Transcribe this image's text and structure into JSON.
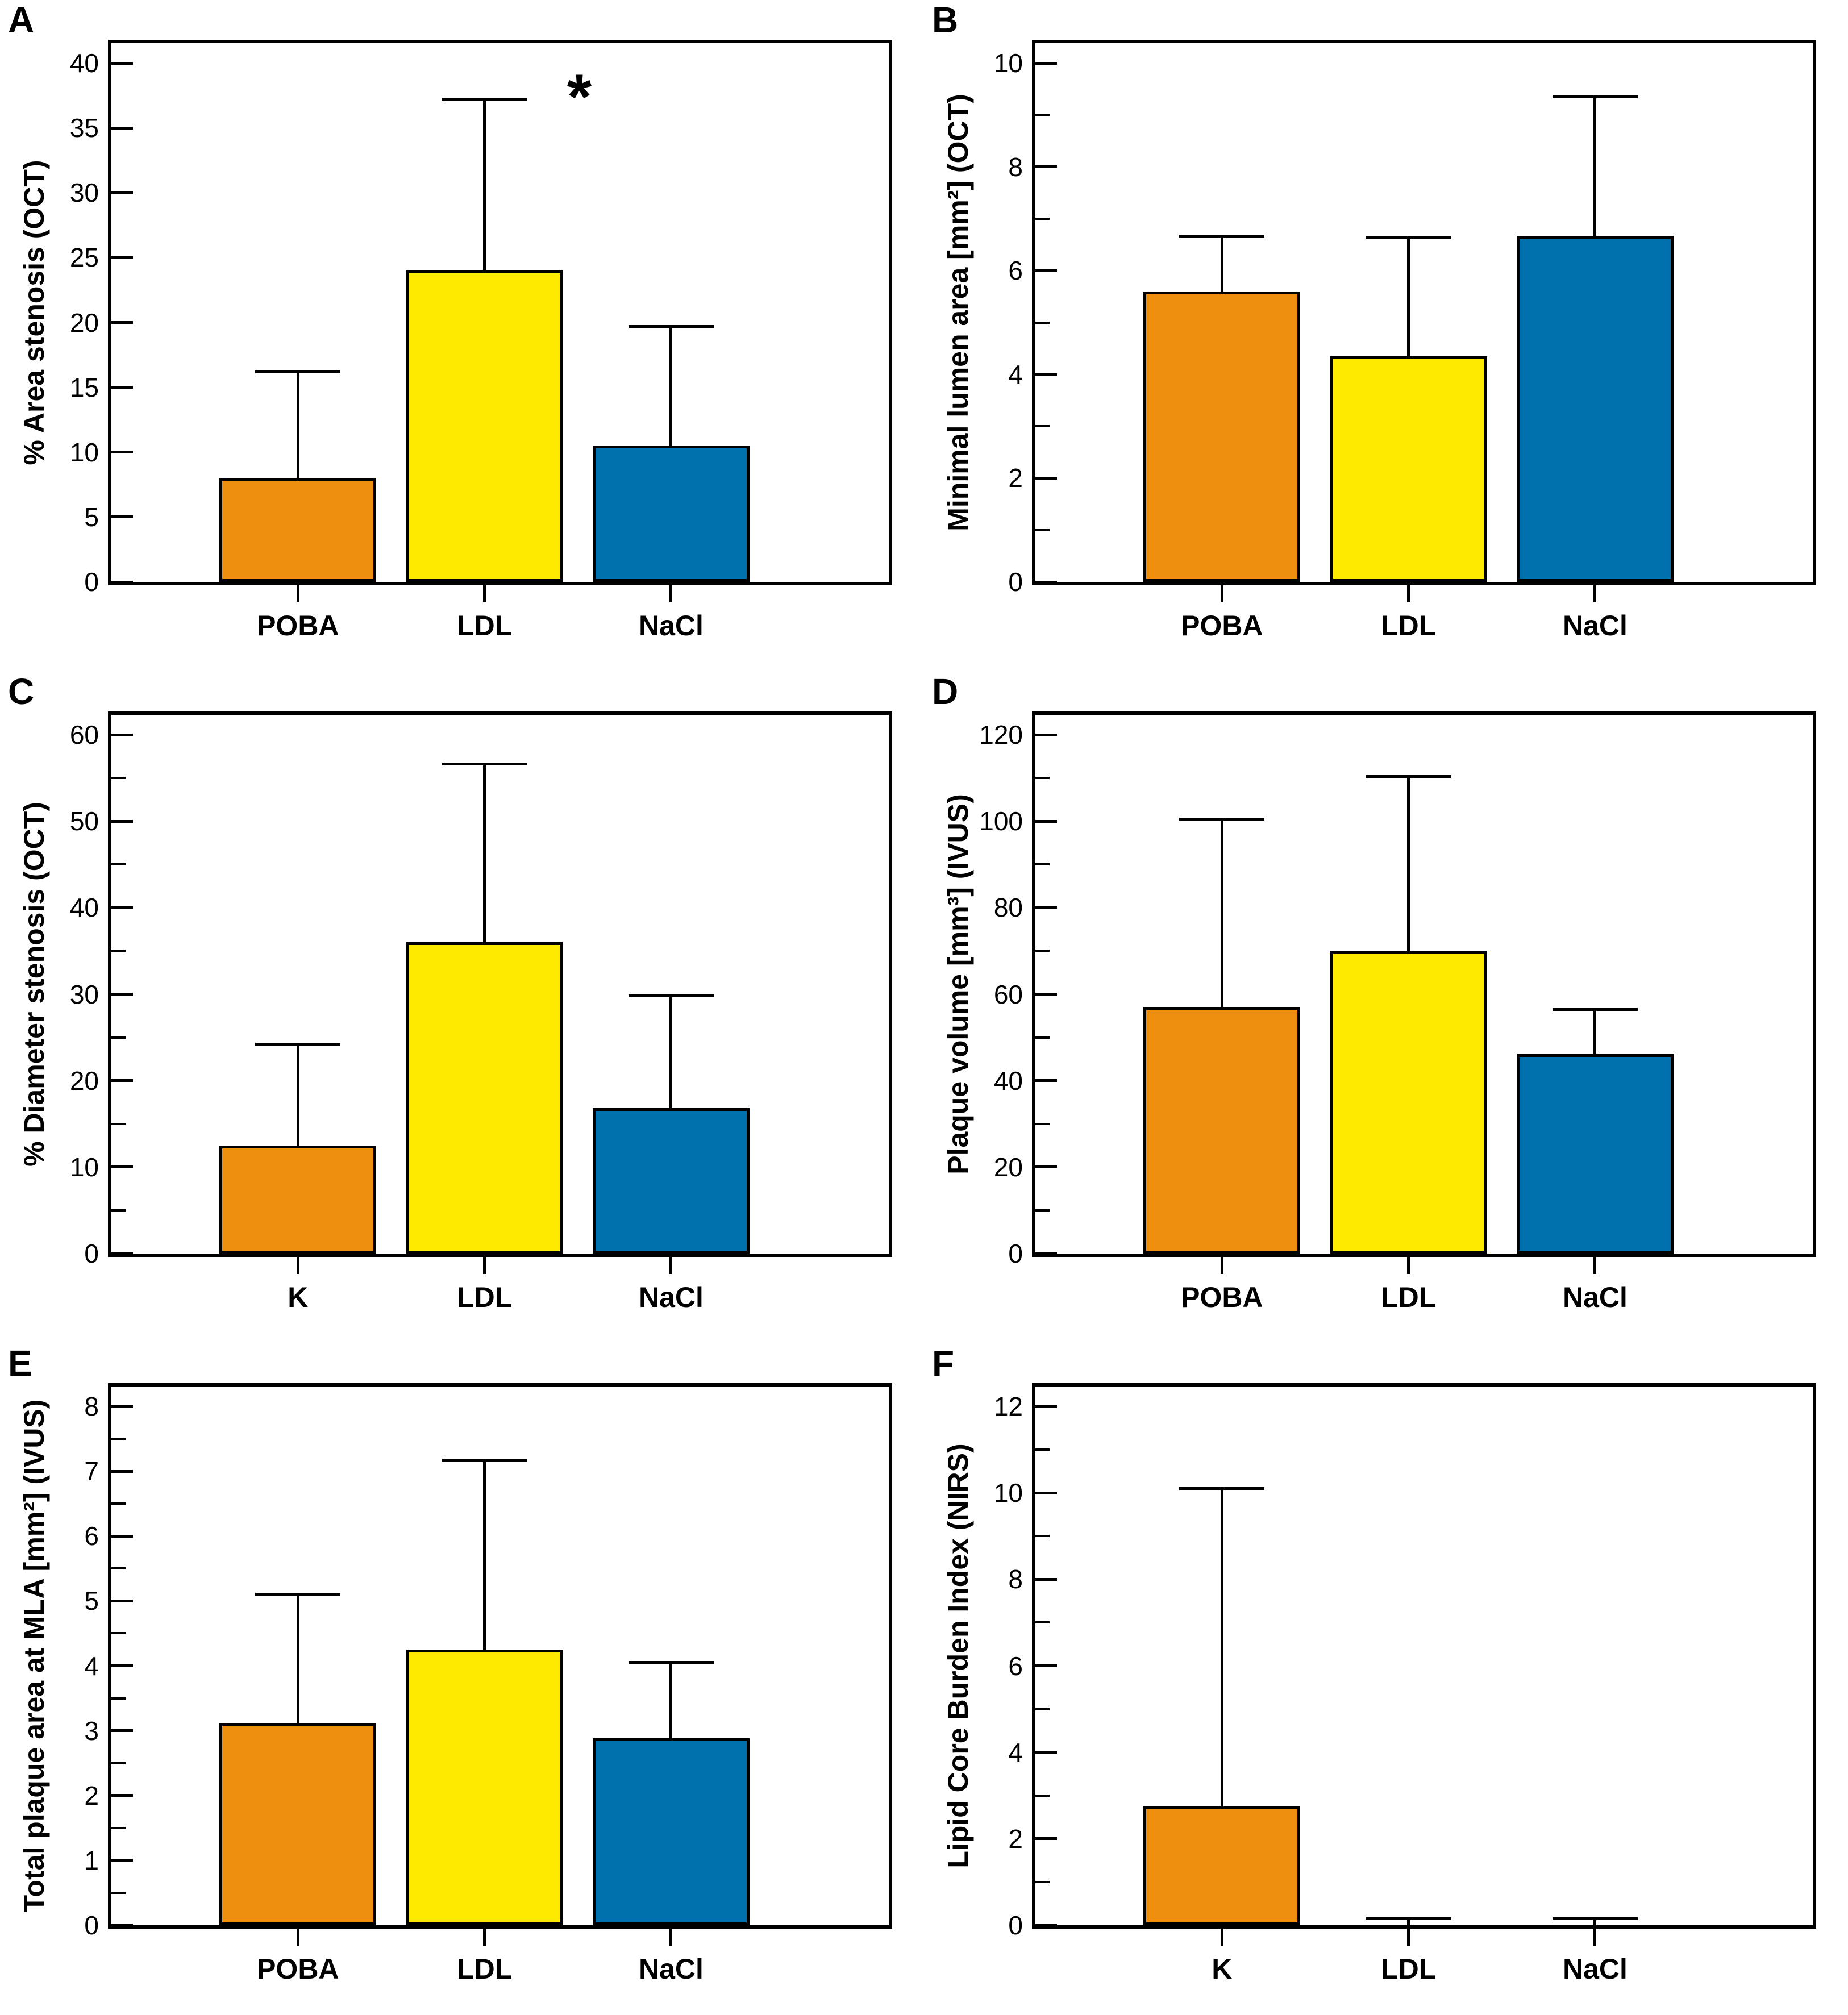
{
  "bar_colors": [
    "#EE8F10",
    "#FDEA00",
    "#0071AC"
  ],
  "axis_color": "#000000",
  "background_color": "#ffffff",
  "chart_data": [
    {
      "type": "bar",
      "label": "A",
      "ylabel": "% Area stenosis (OCT)",
      "categories": [
        "POBA",
        "LDL",
        "NaCl"
      ],
      "values": [
        8.0,
        24.0,
        10.5
      ],
      "error_top": [
        16.2,
        37.2,
        19.7
      ],
      "ylim": [
        0,
        40
      ],
      "ytick_step": 5,
      "minor_ticks": false,
      "grid": false,
      "annotation": {
        "text": "*",
        "bar_index": 1
      }
    },
    {
      "type": "bar",
      "label": "B",
      "ylabel": "Minimal lumen area [mm²] (OCT)",
      "categories": [
        "POBA",
        "LDL",
        "NaCl"
      ],
      "values": [
        5.6,
        4.35,
        6.67
      ],
      "error_top": [
        6.67,
        6.63,
        9.35
      ],
      "ylim": [
        0,
        10
      ],
      "ytick_step": 2,
      "minor_ticks": true,
      "grid": false
    },
    {
      "type": "bar",
      "label": "C",
      "ylabel": "% Diameter stenosis (OCT)",
      "categories": [
        "K",
        "LDL",
        "NaCl"
      ],
      "values": [
        12.5,
        36.0,
        16.8
      ],
      "error_top": [
        24.2,
        56.6,
        29.8
      ],
      "ylim": [
        0,
        60
      ],
      "ytick_step": 10,
      "minor_ticks": true,
      "grid": false
    },
    {
      "type": "bar",
      "label": "D",
      "ylabel": "Plaque volume [mm³] (IVUS)",
      "categories": [
        "POBA",
        "LDL",
        "NaCl"
      ],
      "values": [
        57.0,
        70.0,
        46.2
      ],
      "error_top": [
        100.5,
        110.3,
        56.5
      ],
      "ylim": [
        0,
        120
      ],
      "ytick_step": 20,
      "minor_ticks": true,
      "grid": false
    },
    {
      "type": "bar",
      "label": "E",
      "ylabel": "Total plaque area at MLA [mm²] (IVUS)",
      "categories": [
        "POBA",
        "LDL",
        "NaCl"
      ],
      "values": [
        3.12,
        4.25,
        2.88
      ],
      "error_top": [
        5.1,
        7.17,
        4.05
      ],
      "ylim": [
        0,
        8
      ],
      "ytick_step": 1,
      "minor_ticks": true,
      "grid": false
    },
    {
      "type": "bar",
      "label": "F",
      "ylabel": "Lipid Core Burden Index (NIRS)",
      "categories": [
        "K",
        "LDL",
        "NaCl"
      ],
      "values": [
        2.75,
        0,
        0
      ],
      "error_top": [
        10.1,
        0.15,
        0.15
      ],
      "ylim": [
        0,
        12
      ],
      "ytick_step": 2,
      "minor_ticks": true,
      "grid": false
    }
  ]
}
